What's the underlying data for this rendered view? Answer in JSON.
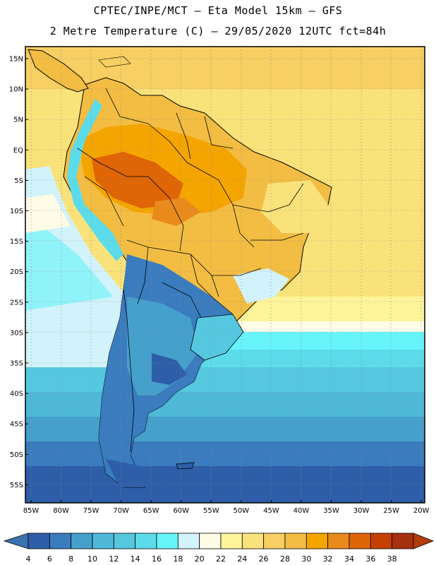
{
  "header": {
    "line1": "CPTEC/INPE/MCT –  Eta Model 15km – GFS",
    "line2": "2 Metre Temperature (C) – 29/05/2020 12UTC fct=84h"
  },
  "map": {
    "lat_labels": [
      "15N",
      "10N",
      "5N",
      "EQ",
      "5S",
      "10S",
      "15S",
      "20S",
      "25S",
      "30S",
      "35S",
      "40S",
      "45S",
      "50S",
      "55S"
    ],
    "lon_labels": [
      "85W",
      "80W",
      "75W",
      "70W",
      "65W",
      "60W",
      "55W",
      "50W",
      "45W",
      "40W",
      "35W",
      "30W",
      "25W",
      "20W"
    ]
  },
  "colorbar": {
    "labels": [
      "4",
      "6",
      "8",
      "10",
      "12",
      "14",
      "16",
      "18",
      "20",
      "22",
      "24",
      "26",
      "28",
      "30",
      "32",
      "34",
      "36",
      "38"
    ],
    "colors": [
      "#2e5ea8",
      "#3a7cbe",
      "#46a0cc",
      "#4fb8d8",
      "#55c8e0",
      "#5cdcea",
      "#66f4fa",
      "#d2f3fb",
      "#fefbe6",
      "#fef49a",
      "#fae27a",
      "#f7cf62",
      "#f2bd42",
      "#f4a500",
      "#ea8a1c",
      "#df6506",
      "#c54005",
      "#a7300e"
    ],
    "low_color": "#3a72b0",
    "high_color": "#b43c0a"
  }
}
